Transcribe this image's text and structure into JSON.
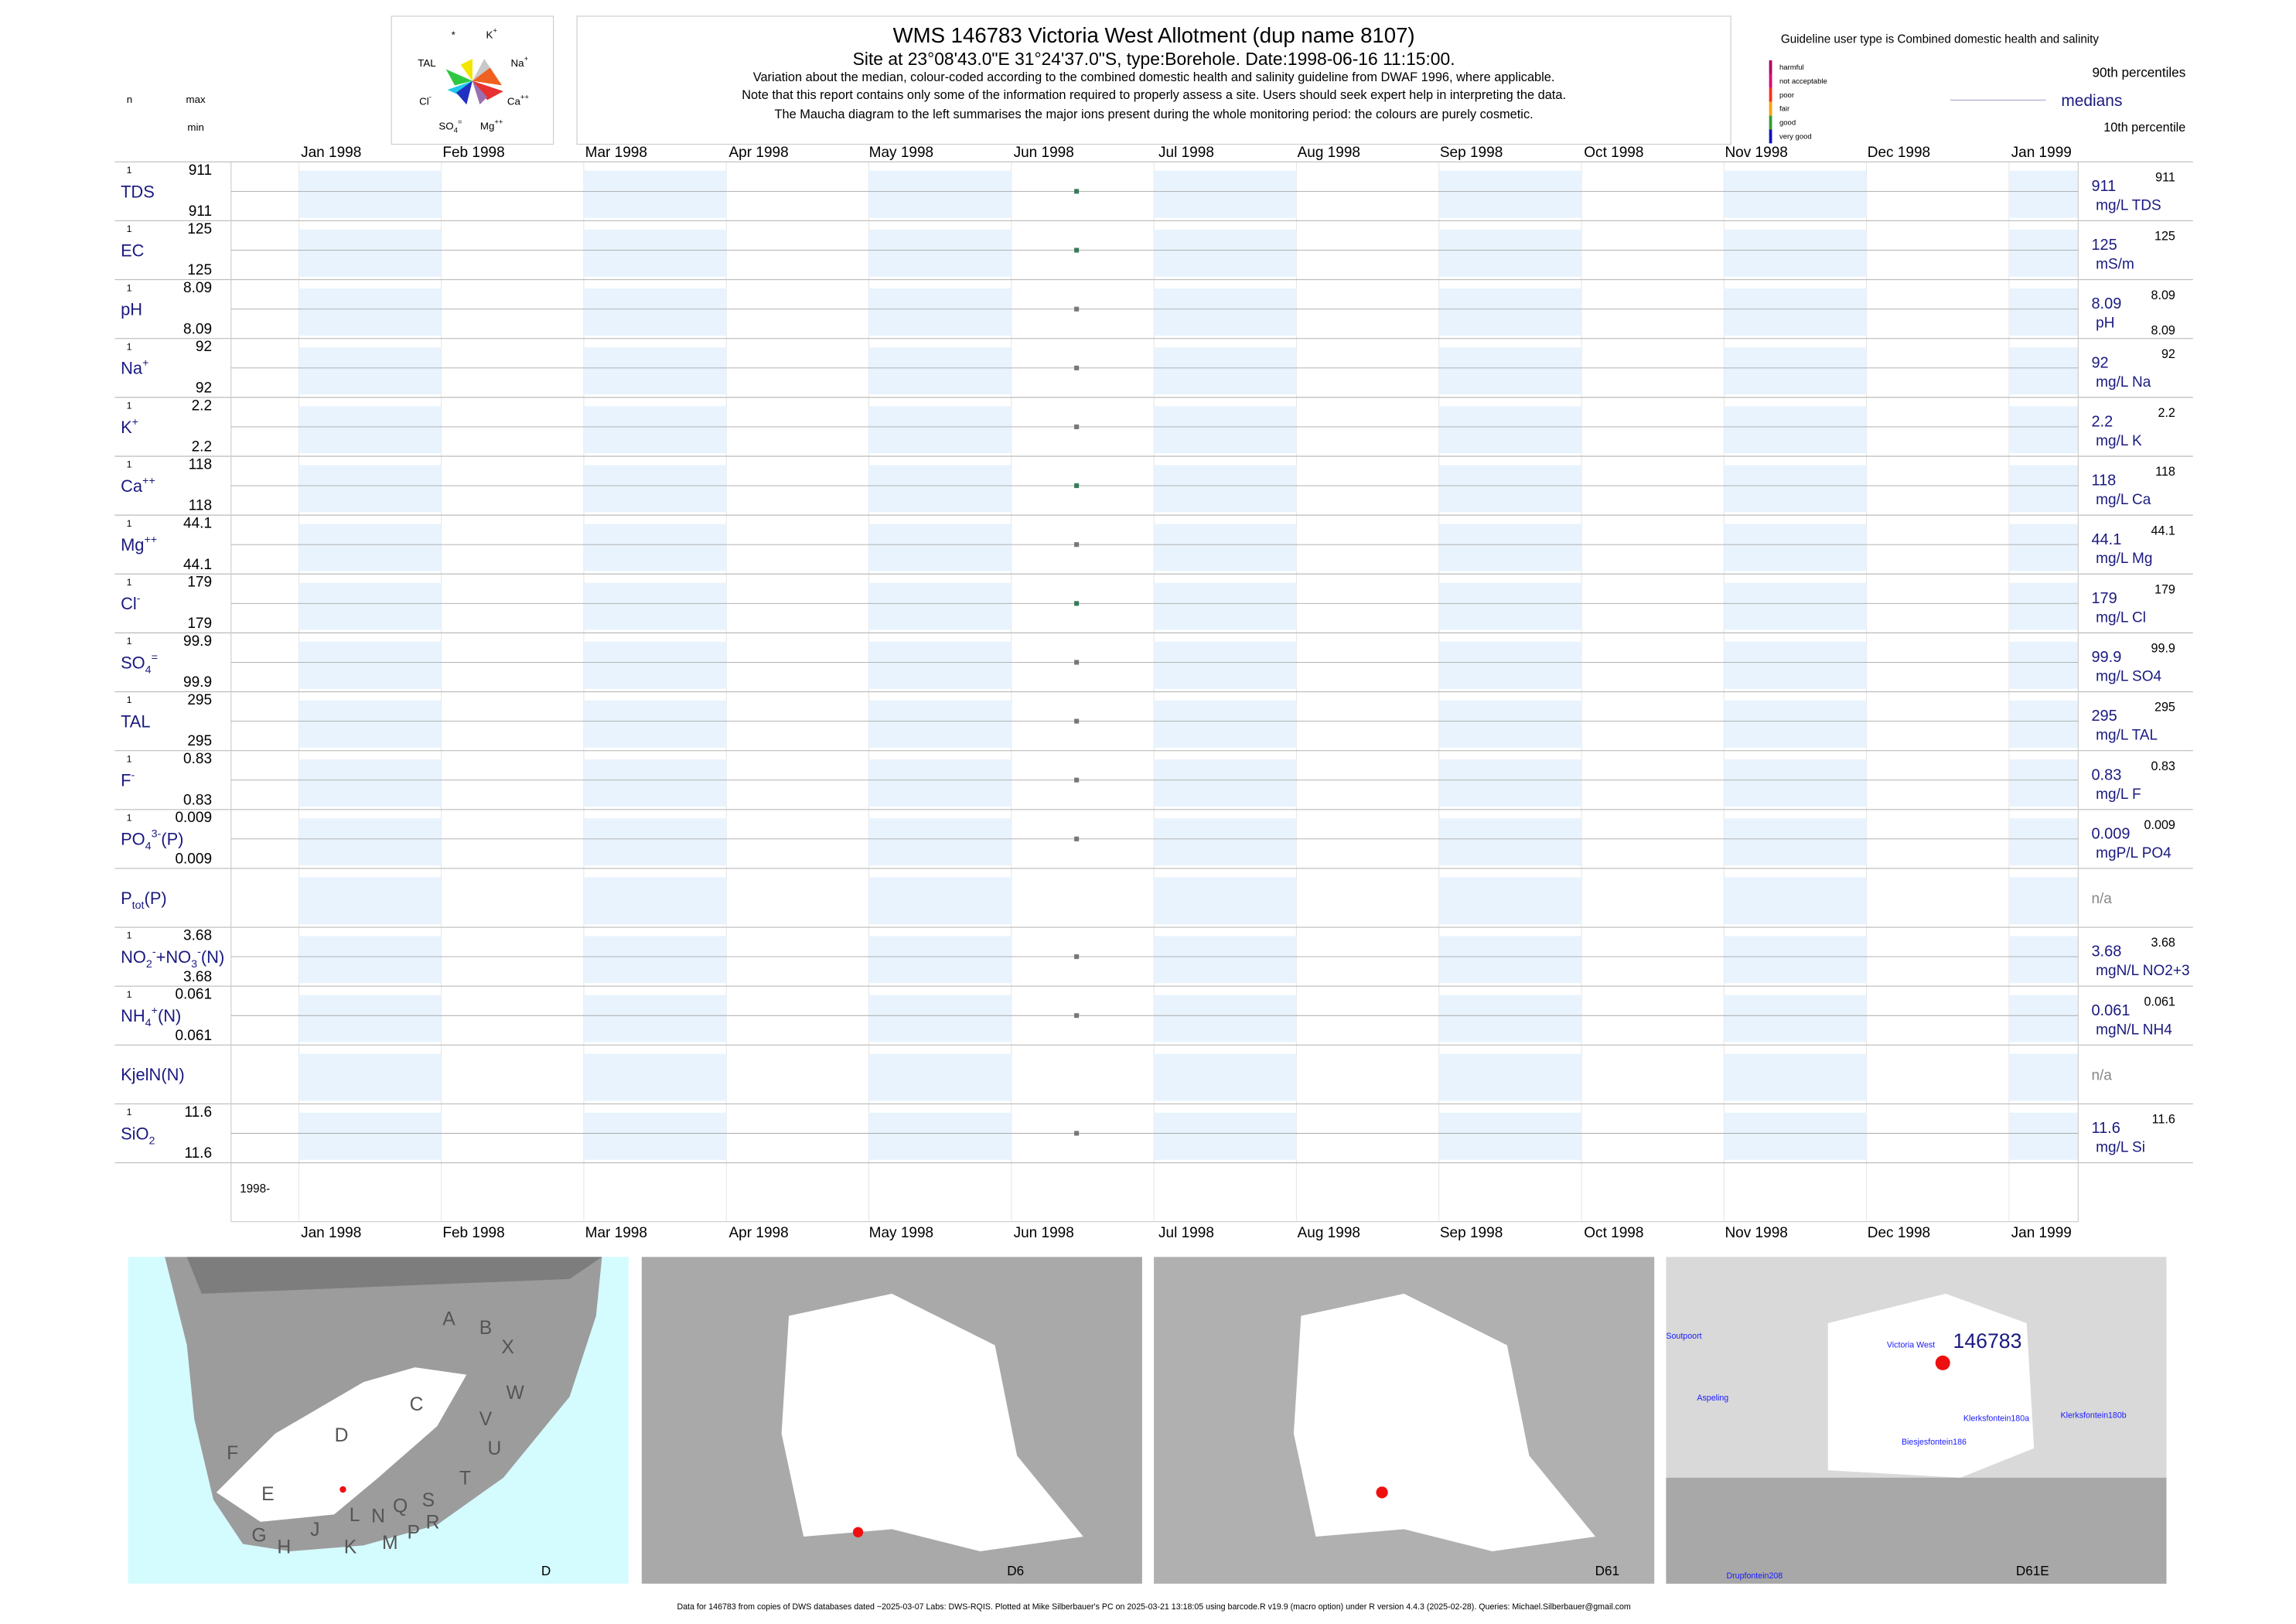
{
  "header": {
    "title": "WMS 146783  Victoria West Allotment (dup name 8107)",
    "site": "Site at 23°08'43.0\"E 31°24'37.0\"S, type:Borehole. Date:1998-06-16 11:15:00.",
    "notes": [
      "Variation about the median,  colour-coded according to the combined domestic health and salinity guideline from DWAF 1996, where applicable.",
      "Note that this report contains only some of the information required to properly assess a site. Users should seek expert help in interpreting the data.",
      "The Maucha diagram to the left summarises the major ions present during the whole monitoring period: the colours are purely cosmetic."
    ],
    "maucha": [
      [
        "*",
        ""
      ],
      [
        "K",
        "+"
      ],
      [
        "TAL",
        ""
      ],
      [
        "Na",
        "+"
      ],
      [
        "Cl",
        "-"
      ],
      [
        "Ca",
        "++"
      ],
      [
        "SO",
        "4",
        "="
      ],
      [
        "Mg",
        "++"
      ]
    ]
  },
  "legend": {
    "guideline": "Guideline user type is Combined domestic health and salinity",
    "classes": [
      {
        "name": "harmful",
        "color": "#b0006a"
      },
      {
        "name": "not acceptable",
        "color": "#e0007a"
      },
      {
        "name": "poor",
        "color": "#ff3010"
      },
      {
        "name": "fair",
        "color": "#ffa000"
      },
      {
        "name": "good",
        "color": "#30a030"
      },
      {
        "name": "very good",
        "color": "#1010c0"
      }
    ],
    "p90": "90th percentiles",
    "medians": "medians",
    "p10": "10th percentile"
  },
  "left_header": {
    "n": "n",
    "max": "max",
    "min": "min"
  },
  "months": [
    "Jan 1998",
    "Feb 1998",
    "Mar 1998",
    "Apr 1998",
    "May 1998",
    "Jun 1998",
    "Jul 1998",
    "Aug 1998",
    "Sep 1998",
    "Oct 1998",
    "Nov 1998",
    "Dec 1998",
    "Jan 1999"
  ],
  "year_label": "1998-",
  "rows": [
    {
      "label": [
        {
          "text": "TDS"
        }
      ],
      "n": 1,
      "max": 911,
      "min": 911,
      "median": 911,
      "p90": 911,
      "unit": "mg/L TDS",
      "color": "#3a7a5a"
    },
    {
      "label": [
        {
          "text": "EC"
        }
      ],
      "n": 1,
      "max": 125,
      "min": 125,
      "median": 125,
      "p90": 125,
      "unit": "mS/m",
      "color": "#3a7a5a"
    },
    {
      "label": [
        {
          "text": "pH"
        }
      ],
      "n": 1,
      "max": 8.09,
      "min": 8.09,
      "median": 8.09,
      "p90": 8.09,
      "p10": 8.09,
      "unit": "pH",
      "color": "#777777"
    },
    {
      "label": [
        {
          "text": "Na"
        },
        {
          "sup": "+"
        }
      ],
      "n": 1,
      "max": 92,
      "min": 92,
      "median": 92,
      "p90": 92,
      "unit": "mg/L Na",
      "color": "#777777"
    },
    {
      "label": [
        {
          "text": "K"
        },
        {
          "sup": "+"
        }
      ],
      "n": 1,
      "max": 2.2,
      "min": 2.2,
      "median": 2.2,
      "p90": 2.2,
      "unit": "mg/L K",
      "color": "#777777"
    },
    {
      "label": [
        {
          "text": "Ca"
        },
        {
          "sup": "++"
        }
      ],
      "n": 1,
      "max": 118,
      "min": 118,
      "median": 118,
      "p90": 118,
      "unit": "mg/L Ca",
      "color": "#3a7a5a"
    },
    {
      "label": [
        {
          "text": "Mg"
        },
        {
          "sup": "++"
        }
      ],
      "n": 1,
      "max": 44.1,
      "min": 44.1,
      "median": 44.1,
      "p90": 44.1,
      "unit": "mg/L Mg",
      "color": "#777777"
    },
    {
      "label": [
        {
          "text": "Cl"
        },
        {
          "sup": "-"
        }
      ],
      "n": 1,
      "max": 179,
      "min": 179,
      "median": 179,
      "p90": 179,
      "unit": "mg/L Cl",
      "color": "#3a7a5a"
    },
    {
      "label": [
        {
          "text": "SO"
        },
        {
          "sub": "4"
        },
        {
          "sup": "="
        }
      ],
      "n": 1,
      "max": 99.9,
      "min": 99.9,
      "median": 99.9,
      "p90": 99.9,
      "unit": "mg/L SO4",
      "color": "#777777"
    },
    {
      "label": [
        {
          "text": "TAL"
        }
      ],
      "n": 1,
      "max": 295,
      "min": 295,
      "median": 295,
      "p90": 295,
      "unit": "mg/L TAL",
      "color": "#777777"
    },
    {
      "label": [
        {
          "text": "F"
        },
        {
          "sup": "-"
        }
      ],
      "n": 1,
      "max": 0.83,
      "min": 0.83,
      "median": 0.83,
      "p90": 0.83,
      "unit": "mg/L F",
      "color": "#777777"
    },
    {
      "label": [
        {
          "text": "PO"
        },
        {
          "sub": "4"
        },
        {
          "sup": "3-"
        },
        {
          "text": "(P)"
        }
      ],
      "n": 1,
      "max": 0.009,
      "min": 0.009,
      "median": 0.009,
      "p90": 0.009,
      "unit": "mgP/L PO4",
      "color": "#777777"
    },
    {
      "label": [
        {
          "text": "P"
        },
        {
          "sub": "tot"
        },
        {
          "text": "(P)"
        }
      ],
      "status": "n/a"
    },
    {
      "label": [
        {
          "text": "NO"
        },
        {
          "sub": "2"
        },
        {
          "sup": "-"
        },
        {
          "text": "+NO"
        },
        {
          "sub": "3"
        },
        {
          "sup": "-"
        },
        {
          "text": "(N)"
        }
      ],
      "n": 1,
      "max": 3.68,
      "min": 3.68,
      "median": 3.68,
      "p90": 3.68,
      "unit": "mgN/L NO2+3",
      "color": "#777777"
    },
    {
      "label": [
        {
          "text": "NH"
        },
        {
          "sub": "4"
        },
        {
          "sup": "+"
        },
        {
          "text": "(N)"
        }
      ],
      "n": 1,
      "max": 0.061,
      "min": 0.061,
      "median": 0.061,
      "p90": 0.061,
      "unit": "mgN/L NH4",
      "color": "#777777"
    },
    {
      "label": [
        {
          "text": "KjelN(N)"
        }
      ],
      "status": "n/a"
    },
    {
      "label": [
        {
          "text": "SiO"
        },
        {
          "sub": "2"
        }
      ],
      "n": 1,
      "max": 11.6,
      "min": 11.6,
      "median": 11.6,
      "p90": 11.6,
      "unit": "mg/L Si",
      "color": "#777777"
    }
  ],
  "maps": [
    {
      "caption": "D",
      "labels": [
        "A",
        "B",
        "X",
        "C",
        "W",
        "V",
        "U",
        "D",
        "F",
        "E",
        "T",
        "S",
        "R",
        "Q",
        "P",
        "N",
        "L",
        "M",
        "K",
        "J",
        "H",
        "G"
      ]
    },
    {
      "caption": "D6",
      "labels": []
    },
    {
      "caption": "D61",
      "labels": []
    },
    {
      "caption": "D61E",
      "site": "146783",
      "labels": [
        "Soutpoort",
        "Victoria West",
        "Aspeling",
        "Klerksfontein180a",
        "Klerksfontein180b",
        "Biesjesfontein186",
        "Drupfontein208"
      ]
    }
  ],
  "footer": "Data for 146783 from copies of DWS databases dated ~2025-03-07 Labs: DWS-RQIS. Plotted at Mike Silberbauer's PC on 2025-03-21 13:18:05 using barcode.R v19.9 (macro option) under R version 4.4.3 (2025-02-28). Queries: Michael.Silberbauer@gmail.com"
}
